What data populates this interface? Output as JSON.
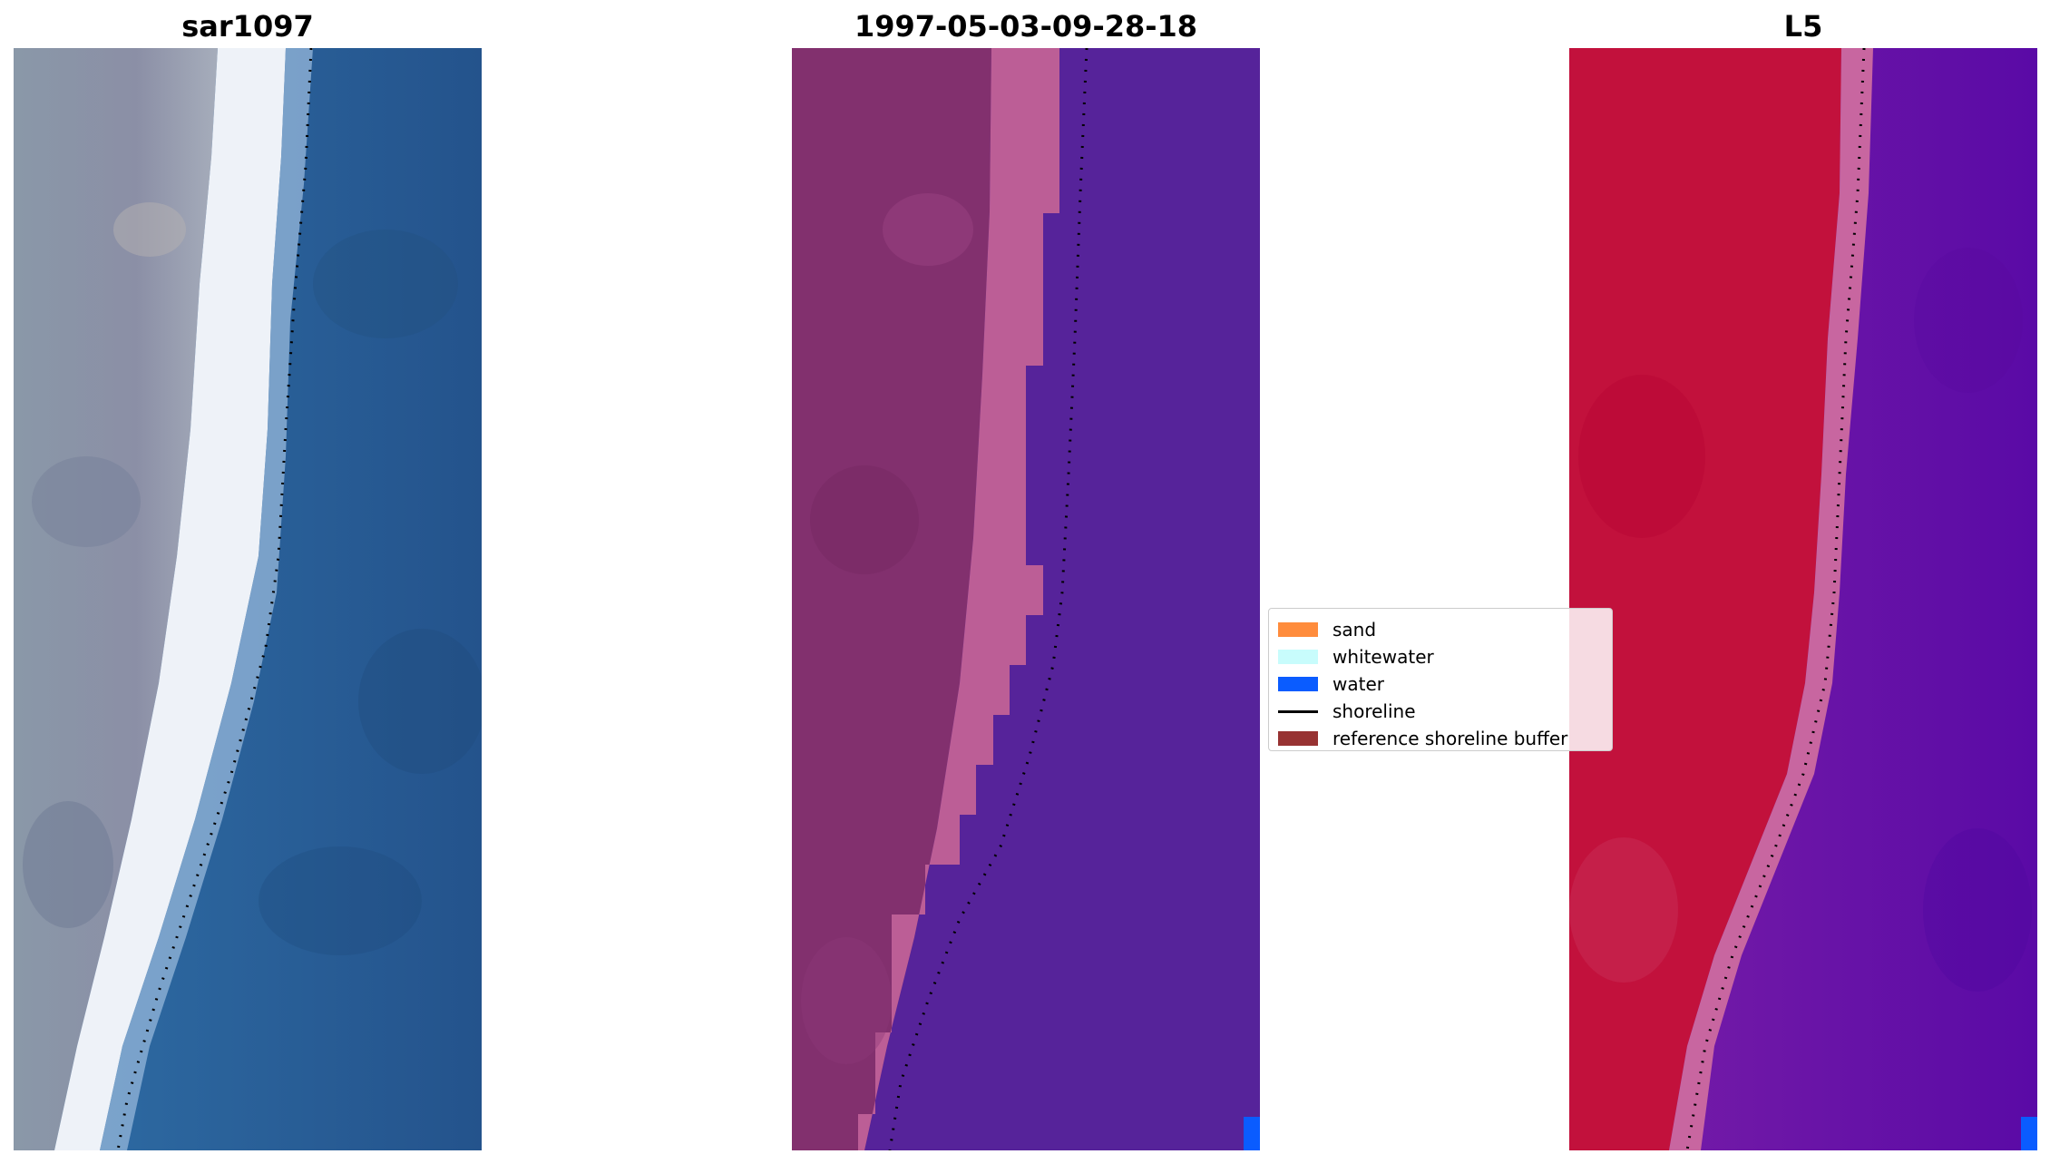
{
  "panels": [
    {
      "title": "sar1097"
    },
    {
      "title": "1997-05-03-09-28-18"
    },
    {
      "title": "L5"
    }
  ],
  "legend": {
    "items": [
      {
        "label": "sand",
        "type": "patch",
        "color": "#ff8c3c"
      },
      {
        "label": "whitewater",
        "type": "patch",
        "color": "#c8fcfc"
      },
      {
        "label": "water",
        "type": "patch",
        "color": "#0a5cff"
      },
      {
        "label": "shoreline",
        "type": "line",
        "color": "#000000"
      },
      {
        "label": "reference shoreline buffer",
        "type": "patch",
        "color": "#973232"
      }
    ]
  },
  "colors": {
    "rgb_land": "#7f8ea6",
    "rgb_whitewater": "#f0f4fa",
    "rgb_water": "#2a5e94",
    "class_land": "#7e2e6c",
    "class_sand_band": "#bb5d95",
    "class_water": "#56239a",
    "ndwi_land": "#c00a38",
    "ndwi_band": "#c66696",
    "ndwi_water": "#6b12a6"
  }
}
